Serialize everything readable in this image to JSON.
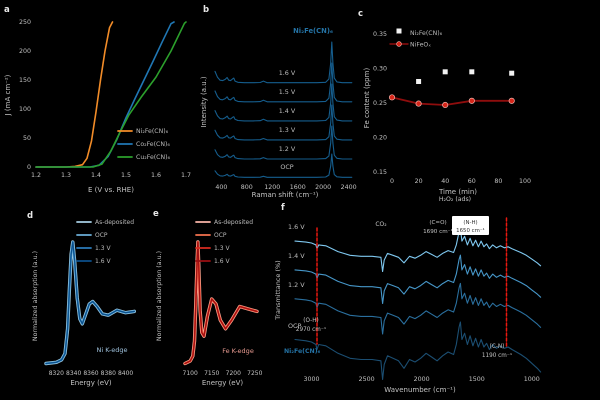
{
  "figure": {
    "bg": "#000000",
    "text_color": "#c3c3c3",
    "accent_red": "#e8190f",
    "panel_letters": [
      "a",
      "b",
      "c",
      "d",
      "e",
      "f"
    ]
  },
  "chart_data": [
    {
      "id": "a",
      "type": "line",
      "panel_letter": "a",
      "xlabel": "E (V vs. RHE)",
      "ylabel": "J (mA cm⁻²)",
      "xlim": [
        1.2,
        1.7
      ],
      "ylim": [
        0,
        250
      ],
      "xticks": [
        "1.2",
        "1.3",
        "1.4",
        "1.5",
        "1.6",
        "1.7"
      ],
      "yticks": [
        "0",
        "50",
        "100",
        "150",
        "200",
        "250"
      ],
      "grid": false,
      "legend_position": "lower-right",
      "legend": [
        {
          "label": "Ni₂Fe(CN)₆",
          "color": "#f28c28"
        },
        {
          "label": "Co₂Fe(CN)₆",
          "color": "#2077b4"
        },
        {
          "label": "Cu₂Fe(CN)₆",
          "color": "#2ca02c"
        }
      ],
      "series": [
        {
          "name": "Ni₂Fe(CN)₆",
          "color": "#f28c28",
          "points": [
            [
              1.2,
              0
            ],
            [
              1.3,
              0
            ],
            [
              1.33,
              1
            ],
            [
              1.355,
              4
            ],
            [
              1.37,
              15
            ],
            [
              1.385,
              45
            ],
            [
              1.4,
              95
            ],
            [
              1.415,
              150
            ],
            [
              1.43,
              200
            ],
            [
              1.445,
              240
            ],
            [
              1.455,
              260
            ]
          ]
        },
        {
          "name": "Co₂Fe(CN)₆",
          "color": "#2077b4",
          "points": [
            [
              1.2,
              0
            ],
            [
              1.38,
              0
            ],
            [
              1.41,
              3
            ],
            [
              1.44,
              18
            ],
            [
              1.47,
              48
            ],
            [
              1.5,
              85
            ],
            [
              1.53,
              118
            ],
            [
              1.56,
              150
            ],
            [
              1.59,
              182
            ],
            [
              1.62,
              215
            ],
            [
              1.65,
              247
            ],
            [
              1.66,
              260
            ]
          ]
        },
        {
          "name": "Cu₂Fe(CN)₆",
          "color": "#2ca02c",
          "points": [
            [
              1.2,
              0
            ],
            [
              1.39,
              0
            ],
            [
              1.42,
              5
            ],
            [
              1.45,
              28
            ],
            [
              1.48,
              60
            ],
            [
              1.51,
              90
            ],
            [
              1.55,
              120
            ],
            [
              1.6,
              155
            ],
            [
              1.65,
              200
            ],
            [
              1.695,
              248
            ],
            [
              1.7,
              258
            ]
          ]
        }
      ]
    },
    {
      "id": "b",
      "type": "stack",
      "panel_letter": "b",
      "title": "Ni₂Fe(CN)₆",
      "title_color": "#2472a4",
      "xlabel": "Raman shift (cm⁻¹)",
      "ylabel": "Intensity (a.u.)",
      "xlim": [
        300,
        2500
      ],
      "xticks": [
        "400",
        "800",
        "1200",
        "1600",
        "2000",
        "2400"
      ],
      "curve_color": "#155d8d",
      "curves": [
        {
          "label": "1.6 V"
        },
        {
          "label": "1.5 V"
        },
        {
          "label": "1.4 V"
        },
        {
          "label": "1.3 V"
        },
        {
          "label": "1.2 V"
        },
        {
          "label": "OCP"
        }
      ],
      "main_peak_cm": 2135,
      "trace": [
        [
          300,
          0.3
        ],
        [
          340,
          0.16
        ],
        [
          380,
          0.09
        ],
        [
          420,
          0.08
        ],
        [
          460,
          0.11
        ],
        [
          490,
          0.155
        ],
        [
          515,
          0.09
        ],
        [
          545,
          0.08
        ],
        [
          575,
          0.12
        ],
        [
          595,
          0.14
        ],
        [
          615,
          0.07
        ],
        [
          660,
          0.04
        ],
        [
          760,
          0.03
        ],
        [
          900,
          0.03
        ],
        [
          1010,
          0.035
        ],
        [
          1060,
          0.07
        ],
        [
          1120,
          0.03
        ],
        [
          1300,
          0.03
        ],
        [
          1600,
          0.03
        ],
        [
          1900,
          0.03
        ],
        [
          2040,
          0.04
        ],
        [
          2090,
          0.12
        ],
        [
          2118,
          0.5
        ],
        [
          2135,
          1.0
        ],
        [
          2152,
          0.5
        ],
        [
          2175,
          0.14
        ],
        [
          2215,
          0.05
        ],
        [
          2300,
          0.03
        ],
        [
          2450,
          0.03
        ]
      ]
    },
    {
      "id": "c",
      "type": "scatter",
      "panel_letter": "c",
      "xlabel": "Time (min)",
      "ylabel": "Fe content (ppm)",
      "xlim": [
        0,
        100
      ],
      "ylim": [
        0.15,
        0.37
      ],
      "xticks": [
        "0",
        "20",
        "40",
        "60",
        "80",
        "100"
      ],
      "yticks": [
        "0.35",
        "0.30",
        "0.25",
        "0.20",
        "0.15"
      ],
      "legend": [
        {
          "label": "Ni₂Fe(CN)₆",
          "marker": "square",
          "color": "#f2f2f2"
        },
        {
          "label": "NiFeOₓ",
          "marker": "circle-line",
          "color": "#d6261a"
        }
      ],
      "series": [
        {
          "name": "Ni₂Fe(CN)₆",
          "marker": "square",
          "color": "#f2f2f2",
          "line": false,
          "points": [
            [
              20,
              0.281
            ],
            [
              40,
              0.295
            ],
            [
              60,
              0.295
            ],
            [
              90,
              0.293
            ]
          ]
        },
        {
          "name": "NiFeOₓ",
          "marker": "circle",
          "color": "#d6261a",
          "line_color": "#8f0d0d",
          "line": true,
          "points": [
            [
              0,
              0.258
            ],
            [
              20,
              0.249
            ],
            [
              40,
              0.247
            ],
            [
              60,
              0.253
            ],
            [
              90,
              0.253
            ]
          ]
        }
      ]
    },
    {
      "id": "d",
      "type": "xanes",
      "panel_letter": "d",
      "xlabel": "Energy (eV)",
      "ylabel": "Normalized absorption (a.u.)",
      "edge_label": "Ni K-edge",
      "edge_label_color": "#9fc2dd",
      "xlim": [
        8308,
        8412
      ],
      "xticks": [
        "8320",
        "8340",
        "8360",
        "8380",
        "8400"
      ],
      "curves": [
        {
          "label": "As-deposited",
          "color": "#a6cee3"
        },
        {
          "label": "OCP",
          "color": "#6baed6"
        },
        {
          "label": "1.3 V",
          "color": "#2b7bba"
        },
        {
          "label": "1.6 V",
          "color": "#0b4f8a"
        }
      ],
      "trace": [
        [
          8308,
          0.02
        ],
        [
          8320,
          0.03
        ],
        [
          8326,
          0.05
        ],
        [
          8330,
          0.1
        ],
        [
          8333,
          0.3
        ],
        [
          8335,
          0.62
        ],
        [
          8337,
          0.9
        ],
        [
          8339,
          1.0
        ],
        [
          8341,
          0.85
        ],
        [
          8344,
          0.55
        ],
        [
          8347,
          0.38
        ],
        [
          8350,
          0.34
        ],
        [
          8354,
          0.42
        ],
        [
          8358,
          0.5
        ],
        [
          8362,
          0.52
        ],
        [
          8367,
          0.48
        ],
        [
          8373,
          0.42
        ],
        [
          8380,
          0.41
        ],
        [
          8390,
          0.45
        ],
        [
          8400,
          0.43
        ],
        [
          8410,
          0.44
        ]
      ]
    },
    {
      "id": "e",
      "type": "xanes",
      "panel_letter": "e",
      "xlabel": "Energy (eV)",
      "ylabel": "Normalized absorption (a.u.)",
      "edge_label": "Fe K-edge",
      "edge_label_color": "#e89a90",
      "xlim": [
        7088,
        7262
      ],
      "xticks": [
        "7100",
        "7150",
        "7200",
        "7250"
      ],
      "curves": [
        {
          "label": "As-deposited",
          "color": "#f9b4a8"
        },
        {
          "label": "OCP",
          "color": "#f4734f"
        },
        {
          "label": "1.3 V",
          "color": "#d92b20"
        },
        {
          "label": "1.6 V",
          "color": "#9c0f12"
        }
      ],
      "trace": [
        [
          7088,
          0.02
        ],
        [
          7100,
          0.04
        ],
        [
          7106,
          0.08
        ],
        [
          7110,
          0.2
        ],
        [
          7113,
          0.5
        ],
        [
          7116,
          0.85
        ],
        [
          7118,
          1.0
        ],
        [
          7120,
          0.8
        ],
        [
          7123,
          0.45
        ],
        [
          7127,
          0.27
        ],
        [
          7132,
          0.24
        ],
        [
          7140,
          0.4
        ],
        [
          7150,
          0.54
        ],
        [
          7160,
          0.5
        ],
        [
          7170,
          0.37
        ],
        [
          7182,
          0.3
        ],
        [
          7196,
          0.37
        ],
        [
          7215,
          0.48
        ],
        [
          7235,
          0.46
        ],
        [
          7255,
          0.44
        ]
      ]
    },
    {
      "id": "f",
      "type": "ftir",
      "panel_letter": "f",
      "xlabel": "Wavenumber (cm⁻¹)",
      "ylabel": "Transmittance (%)",
      "compound_label": "Ni₂Fe(CN)₆",
      "compound_label_color": "#2472a4",
      "xlim": [
        3150,
        880
      ],
      "xticks": [
        "3000",
        "2500",
        "2000",
        "1500",
        "1000"
      ],
      "curves": [
        {
          "label": "1.6 V",
          "color": "#7fc8f0"
        },
        {
          "label": "1.4 V",
          "color": "#4696c8"
        },
        {
          "label": "1.2 V",
          "color": "#2a6f9e"
        },
        {
          "label": "OCP",
          "color": "#1b4e72"
        }
      ],
      "marker_lines": [
        {
          "wavenumber": 2950,
          "color": "#e8190f",
          "style": "dashed"
        },
        {
          "wavenumber": 1230,
          "color": "#e8190f",
          "style": "dashed"
        }
      ],
      "annotations": {
        "oh": {
          "line1": "(O-H)",
          "line2": "2970 cm⁻¹"
        },
        "co2": {
          "line1": "CO₂"
        },
        "h2o2": {
          "line1": "H₂O₂ (ads)"
        },
        "ceo": {
          "line1": "(C=O)",
          "line2": "1690 cm⁻¹"
        },
        "nh": {
          "line1": "(N-H)",
          "line2": "1650 cm⁻¹",
          "boxed": true
        },
        "cn": {
          "line1": "(C-N)",
          "line2": "1190 cm⁻¹"
        }
      },
      "trace": [
        [
          3150,
          2
        ],
        [
          3050,
          1
        ],
        [
          3000,
          0
        ],
        [
          2960,
          -2
        ],
        [
          2950,
          -6
        ],
        [
          2935,
          -2
        ],
        [
          2870,
          -3
        ],
        [
          2760,
          -9
        ],
        [
          2650,
          -13
        ],
        [
          2550,
          -14
        ],
        [
          2450,
          -14
        ],
        [
          2370,
          -15
        ],
        [
          2355,
          -30
        ],
        [
          2340,
          -18
        ],
        [
          2310,
          -11
        ],
        [
          2260,
          -13
        ],
        [
          2210,
          -15
        ],
        [
          2160,
          -21
        ],
        [
          2110,
          -14
        ],
        [
          2060,
          -16
        ],
        [
          2010,
          -13
        ],
        [
          1960,
          -9
        ],
        [
          1910,
          -12
        ],
        [
          1860,
          -15
        ],
        [
          1810,
          -11
        ],
        [
          1760,
          -8
        ],
        [
          1710,
          -10
        ],
        [
          1685,
          -2
        ],
        [
          1660,
          12
        ],
        [
          1648,
          16
        ],
        [
          1635,
          2
        ],
        [
          1610,
          7
        ],
        [
          1585,
          -2
        ],
        [
          1560,
          5
        ],
        [
          1535,
          -3
        ],
        [
          1510,
          3
        ],
        [
          1485,
          -4
        ],
        [
          1460,
          2
        ],
        [
          1435,
          -4
        ],
        [
          1410,
          -1
        ],
        [
          1385,
          -6
        ],
        [
          1355,
          -2
        ],
        [
          1320,
          -5
        ],
        [
          1285,
          -3
        ],
        [
          1250,
          -5
        ],
        [
          1215,
          -4
        ],
        [
          1180,
          -6
        ],
        [
          1140,
          -8
        ],
        [
          1100,
          -10
        ],
        [
          1050,
          -13
        ],
        [
          1000,
          -17
        ],
        [
          950,
          -21
        ],
        [
          920,
          -24
        ]
      ]
    }
  ]
}
